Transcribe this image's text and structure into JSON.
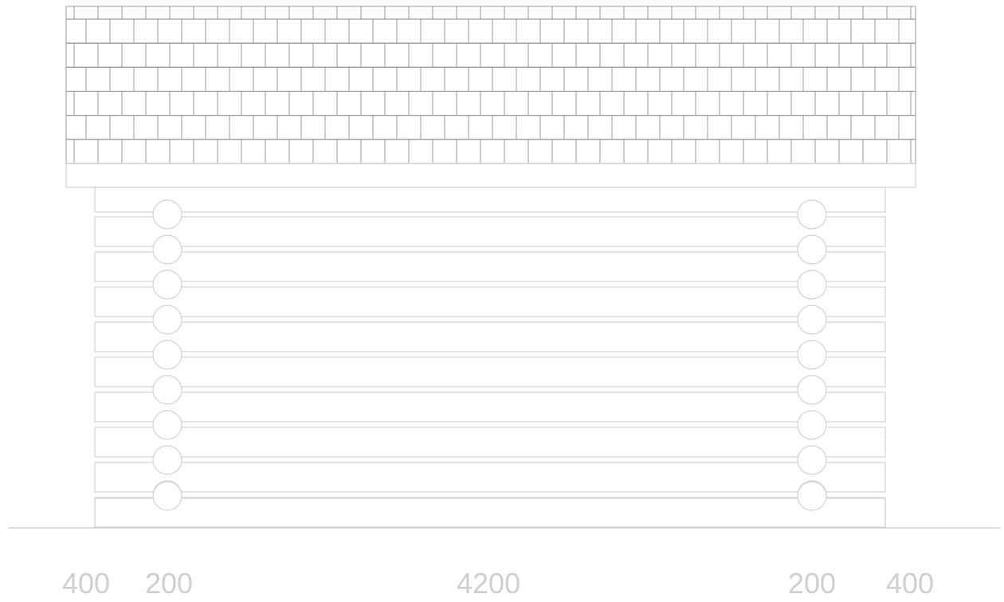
{
  "drawing": {
    "view": "front elevation of log structure",
    "roof": {
      "material": "shingle tiles",
      "rows": 6
    },
    "wall": {
      "log_courses": 10,
      "rounded_log_ends_per_side": 9
    },
    "dimensions": [
      "400",
      "200",
      "4200",
      "200",
      "400"
    ]
  },
  "colors": {
    "background": "#ffffff",
    "roof_lines": "#9a9a9a",
    "outline": "#d2d2d2",
    "dimension_text": "#cfcfcf"
  }
}
